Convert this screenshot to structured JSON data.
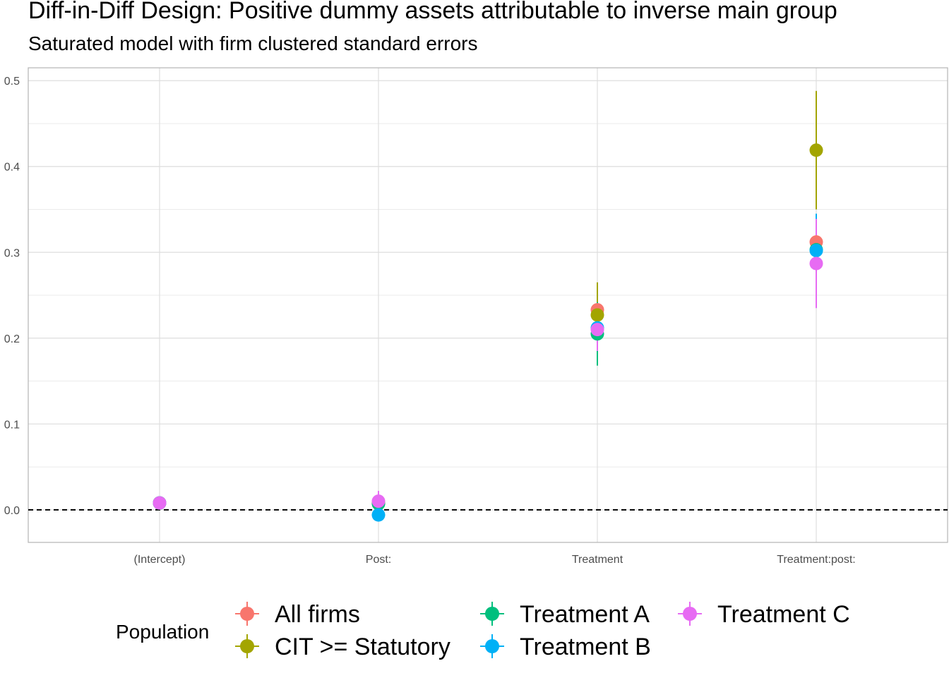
{
  "chart_data": {
    "type": "scatter",
    "title": "Diff-in-Diff Design: Positive dummy assets attributable to inverse main group",
    "subtitle": "Saturated model with firm clustered standard errors",
    "xlabel": "",
    "ylabel": "",
    "categories": [
      "(Intercept)",
      "Post:",
      "Treatment",
      "Treatment:post:"
    ],
    "ylim": [
      -0.038,
      0.515
    ],
    "yticks": [
      0.0,
      0.1,
      0.2,
      0.3,
      0.4,
      0.5
    ],
    "ytick_labels": [
      "0.0",
      "0.1",
      "0.2",
      "0.3",
      "0.4",
      "0.5"
    ],
    "reference_line": 0,
    "grid": true,
    "legend": {
      "title": "Population",
      "placement": "bottom"
    },
    "series": [
      {
        "name": "All firms",
        "color": "#F8766D",
        "values": [
          0.008,
          0.008,
          0.233,
          0.312
        ],
        "lower": [
          0.006,
          0.004,
          0.221,
          0.3
        ],
        "upper": [
          0.01,
          0.012,
          0.245,
          0.324
        ]
      },
      {
        "name": "CIT >= Statutory",
        "color": "#A3A500",
        "values": [
          0.008,
          0.008,
          0.227,
          0.419
        ],
        "lower": [
          0.004,
          0.002,
          0.189,
          0.35
        ],
        "upper": [
          0.012,
          0.015,
          0.265,
          0.488
        ]
      },
      {
        "name": "Treatment A",
        "color": "#00BF7D",
        "values": [
          0.008,
          0.007,
          0.205,
          0.303
        ],
        "lower": [
          0.005,
          0.002,
          0.168,
          0.28
        ],
        "upper": [
          0.011,
          0.012,
          0.242,
          0.326
        ]
      },
      {
        "name": "Treatment B",
        "color": "#00B0F6",
        "values": [
          0.008,
          -0.006,
          0.212,
          0.302
        ],
        "lower": [
          0.004,
          -0.012,
          0.195,
          0.26
        ],
        "upper": [
          0.012,
          0.0,
          0.229,
          0.345
        ]
      },
      {
        "name": "Treatment C",
        "color": "#E76BF3",
        "values": [
          0.008,
          0.01,
          0.21,
          0.287
        ],
        "lower": [
          0.005,
          0.0,
          0.185,
          0.235
        ],
        "upper": [
          0.011,
          0.022,
          0.235,
          0.339
        ]
      }
    ]
  }
}
